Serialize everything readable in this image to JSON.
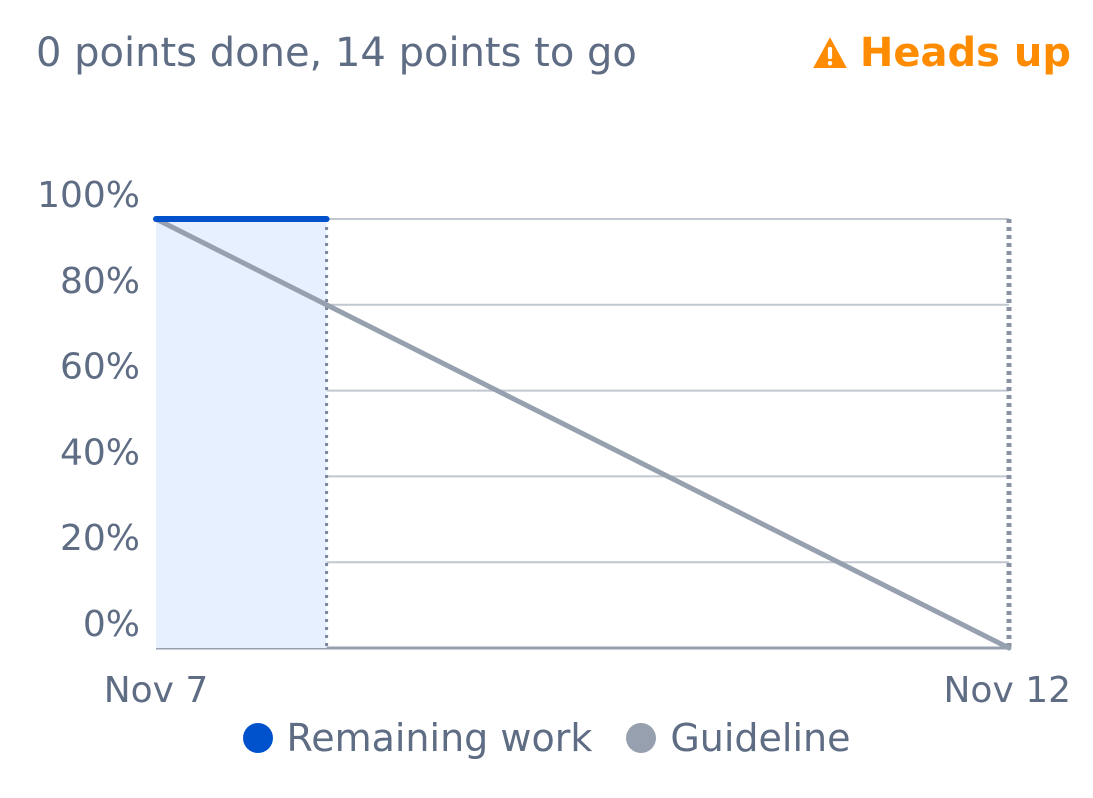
{
  "header": {
    "summary": "0 points done, 14 points to go",
    "warning_label": "Heads up",
    "warning_icon": "warning-triangle-icon"
  },
  "colors": {
    "text": "#5e6c84",
    "warning": "#ff8b00",
    "remaining": "#0052cc",
    "remaining_fill": "#e6f0ff",
    "guideline": "#97a0af",
    "grid": "#c1c7d0",
    "axis": "#97a0af"
  },
  "chart_data": {
    "type": "line",
    "x_ticks": [
      "Nov 7",
      "Nov 12"
    ],
    "xlim": [
      "Nov 7",
      "Nov 12"
    ],
    "y_ticks": [
      "0%",
      "20%",
      "40%",
      "60%",
      "80%",
      "100%"
    ],
    "ylim": [
      0,
      100
    ],
    "grid": true,
    "legend_position": "bottom",
    "series": [
      {
        "name": "Remaining work",
        "color": "#0052cc",
        "points": [
          {
            "x": "Nov 7",
            "y": 100
          },
          {
            "x": "Nov 8",
            "y": 100
          }
        ]
      },
      {
        "name": "Guideline",
        "color": "#97a0af",
        "points": [
          {
            "x": "Nov 7",
            "y": 100
          },
          {
            "x": "Nov 12",
            "y": 0
          }
        ]
      }
    ],
    "markers": [
      {
        "x": "Nov 8",
        "style": "dotted"
      },
      {
        "x": "Nov 12",
        "style": "dotted"
      }
    ]
  }
}
